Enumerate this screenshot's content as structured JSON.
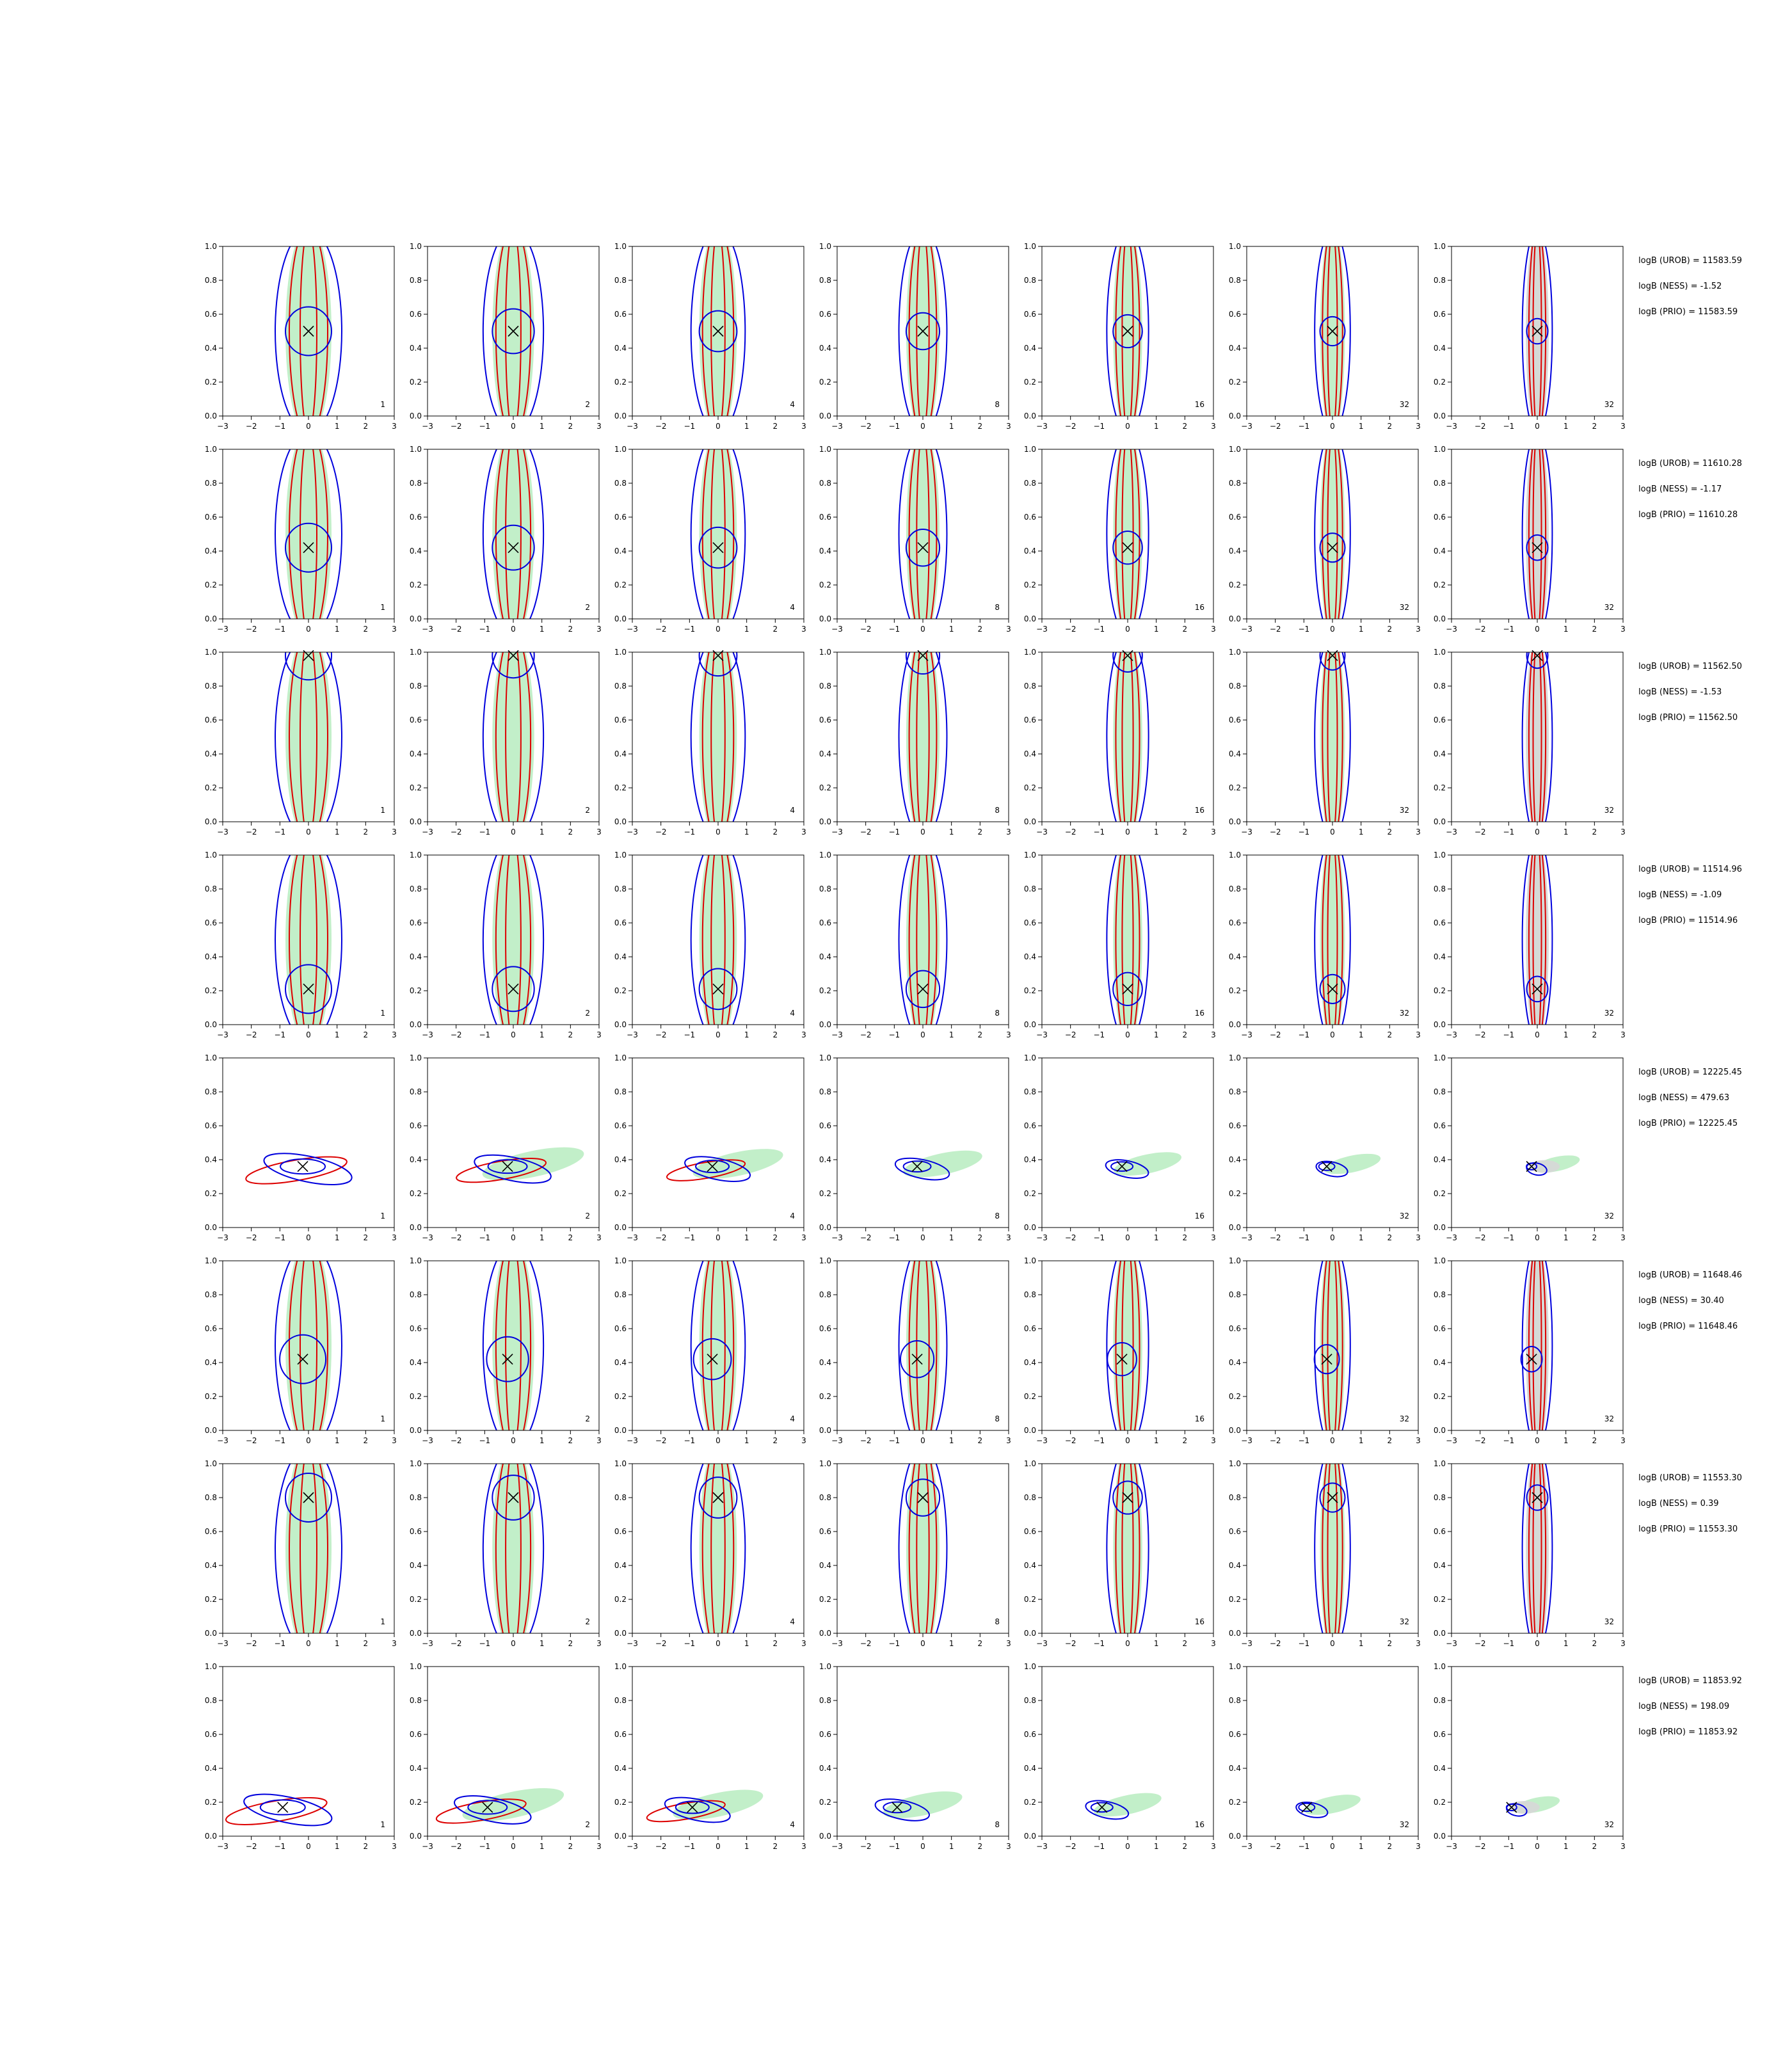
{
  "chart_data": {
    "type": "contour-grid",
    "xlim": [
      -3,
      3
    ],
    "ylim": [
      0.0,
      1.0
    ],
    "x_ticks": [
      -3,
      -2,
      -1,
      0,
      1,
      2,
      3
    ],
    "y_ticks": [
      0.0,
      0.2,
      0.4,
      0.6,
      0.8,
      1.0
    ],
    "x_tick_labels": [
      "−3",
      "−2",
      "−1",
      "0",
      "1",
      "2",
      "3"
    ],
    "y_tick_labels": [
      "0.0",
      "0.2",
      "0.4",
      "0.6",
      "0.8",
      "1.0"
    ],
    "grid": false,
    "colors": {
      "red": "#dd0000",
      "blue": "#0000dd",
      "green_fill": "#b7ecbf",
      "grey_fill": "#d7d7d7",
      "marker": "#000000"
    },
    "column_labels": [
      "1",
      "2",
      "4",
      "8",
      "16",
      "32",
      "32"
    ],
    "rows": [
      {
        "truth": [
          0.0,
          0.5
        ],
        "logB": [
          "logB (UROB) = 11583.59",
          "logB (NESS) = -1.52",
          "logB (PRIO) = 11583.59"
        ],
        "shape": "vertical"
      },
      {
        "truth": [
          0.0,
          0.42
        ],
        "logB": [
          "logB (UROB) = 11610.28",
          "logB (NESS) = -1.17",
          "logB (PRIO) = 11610.28"
        ],
        "shape": "vertical"
      },
      {
        "truth": [
          0.0,
          0.98
        ],
        "logB": [
          "logB (UROB) = 11562.50",
          "logB (NESS) = -1.53",
          "logB (PRIO) = 11562.50"
        ],
        "shape": "vertical"
      },
      {
        "truth": [
          0.0,
          0.21
        ],
        "logB": [
          "logB (UROB) = 11514.96",
          "logB (NESS) = -1.09",
          "logB (PRIO) = 11514.96"
        ],
        "shape": "vertical"
      },
      {
        "truth": [
          -0.2,
          0.36
        ],
        "logB": [
          "logB (UROB) = 12225.45",
          "logB (NESS) = 479.63",
          "logB (PRIO) = 12225.45"
        ],
        "shape": "compact"
      },
      {
        "truth": [
          -0.2,
          0.42
        ],
        "logB": [
          "logB (UROB) = 11648.46",
          "logB (NESS) = 30.40",
          "logB (PRIO) = 11648.46"
        ],
        "shape": "vertical"
      },
      {
        "truth": [
          0.0,
          0.8
        ],
        "logB": [
          "logB (UROB) = 11553.30",
          "logB (NESS) = 0.39",
          "logB (PRIO) = 11553.30"
        ],
        "shape": "vertical"
      },
      {
        "truth": [
          -0.9,
          0.17
        ],
        "logB": [
          "logB (UROB) = 11853.92",
          "logB (NESS) = 198.09",
          "logB (PRIO) = 11853.92"
        ],
        "shape": "compact"
      }
    ]
  }
}
